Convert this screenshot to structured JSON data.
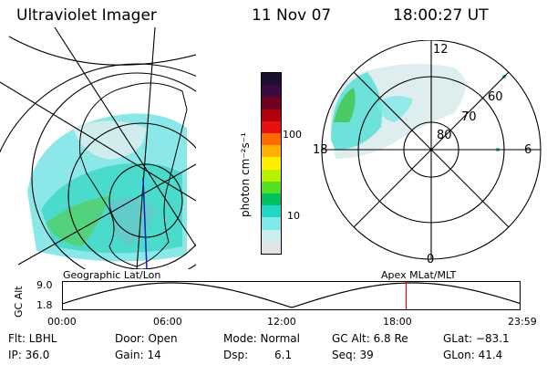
{
  "header": {
    "instrument": "Ultraviolet Imager",
    "date": "11 Nov 07",
    "time": "18:00:27 UT"
  },
  "colorbar": {
    "unit_label": "photon cm⁻²s⁻¹",
    "ticks": [
      "100",
      "10"
    ],
    "colors": [
      "#1a1030",
      "#3a0a40",
      "#700020",
      "#b00010",
      "#e81010",
      "#ff6a00",
      "#ffb000",
      "#ffee00",
      "#b8f000",
      "#50e020",
      "#00c060",
      "#20d8c8",
      "#80e8e8",
      "#c8eeee",
      "#e0e4e4"
    ]
  },
  "polar_plot": {
    "mlt_labels": {
      "top": "12",
      "left": "18",
      "right": "6",
      "bottom": "0"
    },
    "lat_labels": [
      "60",
      "70",
      "80"
    ]
  },
  "geographic_label": "Geographic Lat/Lon",
  "apex_label": "Apex MLat/MLT",
  "timeline": {
    "axis_label": "GC Alt",
    "y_top": "9.0",
    "y_bottom": "1.8",
    "ticks": [
      "00:00",
      "06:00",
      "12:00",
      "18:00",
      "23:59"
    ],
    "current_fraction": 0.75,
    "marker_color": "#e00000"
  },
  "status": {
    "filter": "Flt: LBHL",
    "door": "Door: Open",
    "mode": "Mode: Normal",
    "gc_alt": "GC Alt: 6.8 Re",
    "glat": "GLat: −83.1",
    "ip": "IP: 36.0",
    "gain": "Gain: 14",
    "dsp_label": "Dsp:",
    "dsp_value": "6.1",
    "seq": "Seq: 39",
    "glon": "GLon: 41.4"
  }
}
